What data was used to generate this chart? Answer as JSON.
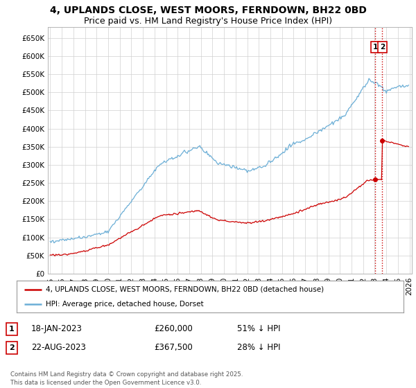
{
  "title": "4, UPLANDS CLOSE, WEST MOORS, FERNDOWN, BH22 0BD",
  "subtitle": "Price paid vs. HM Land Registry's House Price Index (HPI)",
  "ylim": [
    0,
    680000
  ],
  "yticks": [
    0,
    50000,
    100000,
    150000,
    200000,
    250000,
    300000,
    350000,
    400000,
    450000,
    500000,
    550000,
    600000,
    650000
  ],
  "ytick_labels": [
    "£0",
    "£50K",
    "£100K",
    "£150K",
    "£200K",
    "£250K",
    "£300K",
    "£350K",
    "£400K",
    "£450K",
    "£500K",
    "£550K",
    "£600K",
    "£650K"
  ],
  "hpi_color": "#6baed6",
  "price_color": "#cc0000",
  "vline_color": "#cc0000",
  "sale1_x": 2023.04,
  "sale1_price": 260000,
  "sale2_x": 2023.65,
  "sale2_price": 367500,
  "legend_price_label": "4, UPLANDS CLOSE, WEST MOORS, FERNDOWN, BH22 0BD (detached house)",
  "legend_hpi_label": "HPI: Average price, detached house, Dorset",
  "table_rows": [
    {
      "num": "1",
      "date": "18-JAN-2023",
      "price": "£260,000",
      "info": "51% ↓ HPI"
    },
    {
      "num": "2",
      "date": "22-AUG-2023",
      "price": "£367,500",
      "info": "28% ↓ HPI"
    }
  ],
  "footer": "Contains HM Land Registry data © Crown copyright and database right 2025.\nThis data is licensed under the Open Government Licence v3.0.",
  "background_color": "#ffffff",
  "grid_color": "#d0d0d0",
  "title_fontsize": 10,
  "subtitle_fontsize": 9,
  "tick_fontsize": 7.5,
  "legend_fontsize": 8,
  "xstart": 1995,
  "xend": 2026
}
